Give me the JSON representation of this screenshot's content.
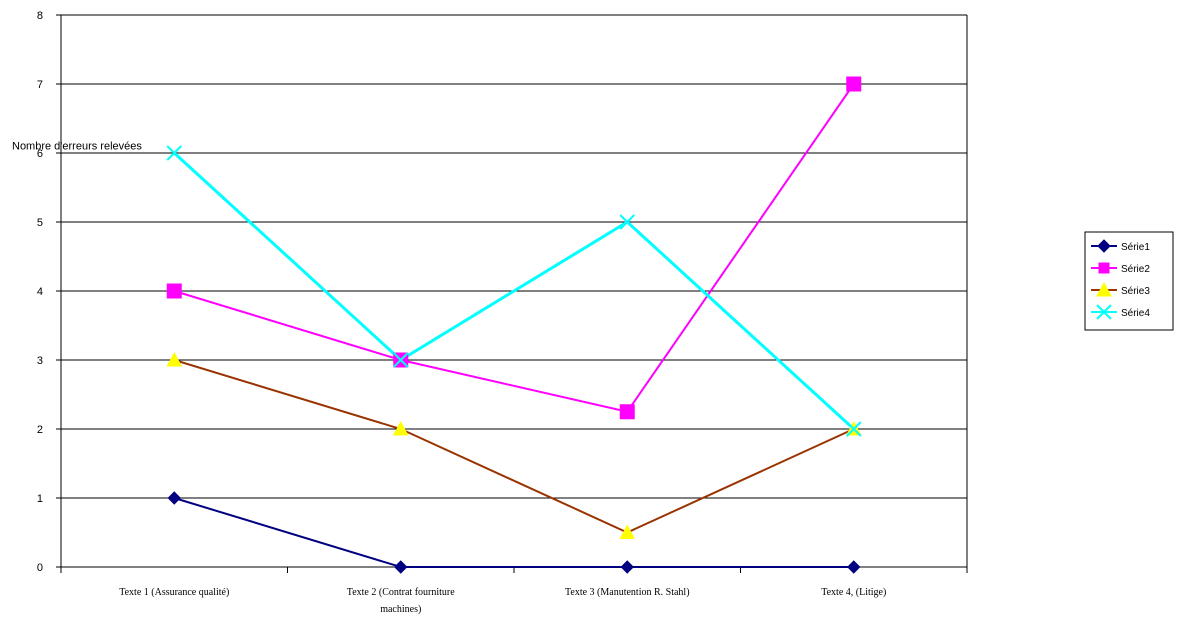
{
  "chart_data": {
    "type": "line",
    "title": "",
    "xlabel": "",
    "ylabel": "Nombre d'erreurs relevées",
    "categories": [
      [
        "Texte 1 (Assurance qualité)"
      ],
      [
        "Texte 2 (Contrat fourniture",
        "machines)"
      ],
      [
        "Texte 3 (Manutention R. Stahl)"
      ],
      [
        "Texte 4, (Litige)"
      ]
    ],
    "ylim": [
      0,
      8
    ],
    "yticks": [
      0,
      1,
      2,
      3,
      4,
      5,
      6,
      7,
      8
    ],
    "grid": true,
    "legend_position": "right",
    "series": [
      {
        "name": "Série1",
        "values": [
          1,
          0,
          0,
          0
        ],
        "color": "#000080",
        "marker": "diamond"
      },
      {
        "name": "Série2",
        "values": [
          4,
          3,
          2.25,
          7
        ],
        "color": "#ff00ff",
        "marker": "square"
      },
      {
        "name": "Série3",
        "values": [
          3,
          2,
          0.5,
          2
        ],
        "color": "#993300",
        "marker": "triangle"
      },
      {
        "name": "Série4",
        "values": [
          6,
          3,
          5,
          2
        ],
        "color": "#00ffff",
        "marker": "x"
      }
    ]
  }
}
